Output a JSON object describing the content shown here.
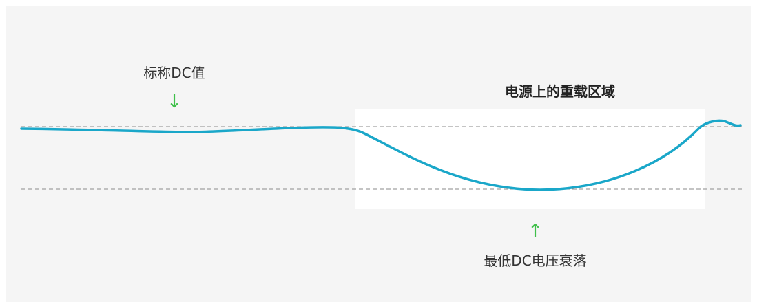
{
  "diagram": {
    "nominal_label": "标称DC值",
    "heavy_load_label": "电源上的重载区域",
    "min_dip_label": "最低DC电压衰落",
    "down_arrow": "↓",
    "up_arrow": "↑"
  },
  "colors": {
    "background": "#f5f5f5",
    "highlight_region": "#ffffff",
    "voltage_curve": "#1aa7c9",
    "reference_lines": "#8a8a8a",
    "arrows": "#3fbf4a",
    "border": "#555555"
  },
  "icons": {
    "nominal_arrow": "arrow-down-icon",
    "dip_arrow": "arrow-up-icon"
  }
}
